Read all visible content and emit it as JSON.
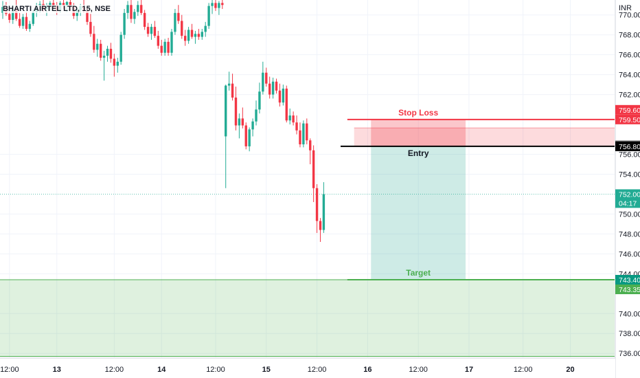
{
  "header": {
    "symbol": "BHARTI AIRTEL LTD, 15, NSE",
    "currency": "INR"
  },
  "colors": {
    "up": "#22ab94",
    "down": "#f23645",
    "stop_loss": "#f23645",
    "entry": "#000000",
    "target": "#4caf50",
    "grid": "#f0f3fa",
    "axis_line": "#d1d4dc",
    "current_price": "#22ab94",
    "crosshair_badge": "#707070"
  },
  "chart_data": {
    "type": "candlestick",
    "y_range": [
      735.6,
      771.5
    ],
    "y_ticks": [
      "770.00",
      "768.00",
      "766.00",
      "764.00",
      "762.00",
      "756.00",
      "754.00",
      "750.00",
      "748.00",
      "746.00",
      "744.00",
      "740.00",
      "738.00",
      "736.00"
    ],
    "x_ticks": [
      "12:00",
      "13",
      "12:00",
      "14",
      "12:00",
      "15",
      "12:00",
      "16",
      "12:00",
      "17",
      "12:00",
      "20"
    ],
    "candles": [
      {
        "o": 770.2,
        "h": 771.4,
        "l": 769.6,
        "c": 770.8
      },
      {
        "o": 770.8,
        "h": 771.3,
        "l": 769.9,
        "c": 770.1
      },
      {
        "o": 770.1,
        "h": 770.6,
        "l": 769.2,
        "c": 769.5
      },
      {
        "o": 769.5,
        "h": 771.0,
        "l": 769.1,
        "c": 770.6
      },
      {
        "o": 770.6,
        "h": 771.5,
        "l": 769.4,
        "c": 769.6
      },
      {
        "o": 769.6,
        "h": 770.2,
        "l": 768.7,
        "c": 768.9
      },
      {
        "o": 768.9,
        "h": 770.1,
        "l": 768.6,
        "c": 769.8
      },
      {
        "o": 769.8,
        "h": 770.3,
        "l": 768.4,
        "c": 768.6
      },
      {
        "o": 768.6,
        "h": 769.4,
        "l": 768.3,
        "c": 769.1
      },
      {
        "o": 769.1,
        "h": 770.6,
        "l": 768.9,
        "c": 770.3
      },
      {
        "o": 770.3,
        "h": 771.2,
        "l": 769.8,
        "c": 770.9
      },
      {
        "o": 770.9,
        "h": 771.4,
        "l": 770.2,
        "c": 771.1
      },
      {
        "o": 771.1,
        "h": 771.5,
        "l": 770.3,
        "c": 770.6
      },
      {
        "o": 770.6,
        "h": 771.2,
        "l": 769.9,
        "c": 770.9
      },
      {
        "o": 770.9,
        "h": 771.4,
        "l": 770.4,
        "c": 771.2
      },
      {
        "o": 771.2,
        "h": 771.5,
        "l": 770.6,
        "c": 770.9
      },
      {
        "o": 770.9,
        "h": 771.3,
        "l": 770.0,
        "c": 770.5
      },
      {
        "o": 770.5,
        "h": 771.4,
        "l": 770.2,
        "c": 771.2
      },
      {
        "o": 771.2,
        "h": 771.5,
        "l": 770.6,
        "c": 770.9
      },
      {
        "o": 770.9,
        "h": 771.4,
        "l": 770.3,
        "c": 771.3
      },
      {
        "o": 771.3,
        "h": 771.5,
        "l": 770.4,
        "c": 770.8
      },
      {
        "o": 770.8,
        "h": 771.2,
        "l": 769.6,
        "c": 769.9
      },
      {
        "o": 769.9,
        "h": 770.7,
        "l": 769.4,
        "c": 770.5
      },
      {
        "o": 770.5,
        "h": 771.1,
        "l": 769.9,
        "c": 770.9
      },
      {
        "o": 770.9,
        "h": 771.5,
        "l": 770.2,
        "c": 770.4
      },
      {
        "o": 770.4,
        "h": 770.9,
        "l": 769.0,
        "c": 769.3
      },
      {
        "o": 769.3,
        "h": 770.1,
        "l": 767.8,
        "c": 768.1
      },
      {
        "o": 768.1,
        "h": 768.9,
        "l": 766.2,
        "c": 766.5
      },
      {
        "o": 766.5,
        "h": 767.6,
        "l": 765.8,
        "c": 767.1
      },
      {
        "o": 767.1,
        "h": 767.5,
        "l": 765.4,
        "c": 765.7
      },
      {
        "o": 765.7,
        "h": 766.4,
        "l": 763.4,
        "c": 765.9
      },
      {
        "o": 765.9,
        "h": 766.9,
        "l": 765.3,
        "c": 766.6
      },
      {
        "o": 766.6,
        "h": 767.2,
        "l": 765.2,
        "c": 765.6
      },
      {
        "o": 765.6,
        "h": 766.1,
        "l": 763.8,
        "c": 764.9
      },
      {
        "o": 764.9,
        "h": 765.7,
        "l": 764.2,
        "c": 765.3
      },
      {
        "o": 765.3,
        "h": 768.3,
        "l": 765.0,
        "c": 768.0
      },
      {
        "o": 768.0,
        "h": 770.6,
        "l": 767.6,
        "c": 770.2
      },
      {
        "o": 770.2,
        "h": 771.4,
        "l": 769.6,
        "c": 771.0
      },
      {
        "o": 771.0,
        "h": 771.5,
        "l": 769.2,
        "c": 769.6
      },
      {
        "o": 769.6,
        "h": 770.6,
        "l": 769.1,
        "c": 770.3
      },
      {
        "o": 770.3,
        "h": 771.4,
        "l": 769.9,
        "c": 771.0
      },
      {
        "o": 771.0,
        "h": 771.5,
        "l": 770.0,
        "c": 770.2
      },
      {
        "o": 770.2,
        "h": 770.5,
        "l": 768.5,
        "c": 768.8
      },
      {
        "o": 768.8,
        "h": 769.2,
        "l": 767.8,
        "c": 768.1
      },
      {
        "o": 768.1,
        "h": 769.1,
        "l": 767.5,
        "c": 768.8
      },
      {
        "o": 768.8,
        "h": 769.4,
        "l": 767.7,
        "c": 767.9
      },
      {
        "o": 767.9,
        "h": 768.4,
        "l": 766.6,
        "c": 766.9
      },
      {
        "o": 766.9,
        "h": 767.5,
        "l": 765.9,
        "c": 766.2
      },
      {
        "o": 766.2,
        "h": 767.6,
        "l": 765.9,
        "c": 767.3
      },
      {
        "o": 767.3,
        "h": 767.7,
        "l": 765.9,
        "c": 766.2
      },
      {
        "o": 766.2,
        "h": 768.6,
        "l": 765.9,
        "c": 768.3
      },
      {
        "o": 768.3,
        "h": 770.6,
        "l": 768.0,
        "c": 770.2
      },
      {
        "o": 770.2,
        "h": 771.0,
        "l": 769.1,
        "c": 769.4
      },
      {
        "o": 769.4,
        "h": 770.0,
        "l": 767.6,
        "c": 767.9
      },
      {
        "o": 767.9,
        "h": 768.5,
        "l": 766.9,
        "c": 767.4
      },
      {
        "o": 767.4,
        "h": 768.8,
        "l": 767.1,
        "c": 768.5
      },
      {
        "o": 768.5,
        "h": 769.1,
        "l": 767.6,
        "c": 767.8
      },
      {
        "o": 767.8,
        "h": 768.4,
        "l": 767.1,
        "c": 768.1
      },
      {
        "o": 768.1,
        "h": 768.6,
        "l": 767.5,
        "c": 767.8
      },
      {
        "o": 767.8,
        "h": 768.6,
        "l": 767.5,
        "c": 768.3
      },
      {
        "o": 768.3,
        "h": 769.3,
        "l": 767.8,
        "c": 768.9
      },
      {
        "o": 768.9,
        "h": 771.2,
        "l": 768.6,
        "c": 770.9
      },
      {
        "o": 770.9,
        "h": 771.5,
        "l": 770.1,
        "c": 771.2
      },
      {
        "o": 771.2,
        "h": 771.5,
        "l": 770.4,
        "c": 770.7
      },
      {
        "o": 770.7,
        "h": 771.4,
        "l": 770.0,
        "c": 771.2
      },
      {
        "o": 771.2,
        "h": 771.5,
        "l": 770.6,
        "c": 771.0
      },
      {
        "o": 757.8,
        "h": 763.0,
        "l": 752.6,
        "c": 762.9
      },
      {
        "o": 762.9,
        "h": 764.3,
        "l": 762.4,
        "c": 763.1
      },
      {
        "o": 763.1,
        "h": 764.1,
        "l": 761.4,
        "c": 761.7
      },
      {
        "o": 761.7,
        "h": 762.8,
        "l": 758.4,
        "c": 758.9
      },
      {
        "o": 758.9,
        "h": 760.1,
        "l": 757.6,
        "c": 759.6
      },
      {
        "o": 759.6,
        "h": 760.7,
        "l": 758.6,
        "c": 758.9
      },
      {
        "o": 758.9,
        "h": 759.2,
        "l": 756.5,
        "c": 756.8
      },
      {
        "o": 756.8,
        "h": 758.7,
        "l": 756.3,
        "c": 758.5
      },
      {
        "o": 758.5,
        "h": 759.6,
        "l": 757.8,
        "c": 759.3
      },
      {
        "o": 759.3,
        "h": 761.4,
        "l": 758.9,
        "c": 760.5
      },
      {
        "o": 760.5,
        "h": 763.2,
        "l": 760.1,
        "c": 762.3
      },
      {
        "o": 762.3,
        "h": 765.3,
        "l": 762.0,
        "c": 764.2
      },
      {
        "o": 764.2,
        "h": 764.7,
        "l": 762.8,
        "c": 763.1
      },
      {
        "o": 763.1,
        "h": 763.8,
        "l": 761.6,
        "c": 762.0
      },
      {
        "o": 762.0,
        "h": 763.7,
        "l": 761.6,
        "c": 763.3
      },
      {
        "o": 763.3,
        "h": 763.6,
        "l": 762.1,
        "c": 762.4
      },
      {
        "o": 762.4,
        "h": 763.1,
        "l": 760.8,
        "c": 761.2
      },
      {
        "o": 761.2,
        "h": 763.0,
        "l": 760.9,
        "c": 762.6
      },
      {
        "o": 762.6,
        "h": 762.9,
        "l": 759.2,
        "c": 759.4
      },
      {
        "o": 759.4,
        "h": 760.6,
        "l": 759.0,
        "c": 759.9
      },
      {
        "o": 759.9,
        "h": 760.3,
        "l": 758.9,
        "c": 759.2
      },
      {
        "o": 759.2,
        "h": 759.9,
        "l": 758.0,
        "c": 758.4
      },
      {
        "o": 758.4,
        "h": 759.2,
        "l": 756.7,
        "c": 757.0
      },
      {
        "o": 757.0,
        "h": 759.4,
        "l": 756.7,
        "c": 759.1
      },
      {
        "o": 759.1,
        "h": 759.6,
        "l": 757.0,
        "c": 757.4
      },
      {
        "o": 757.4,
        "h": 757.6,
        "l": 755.0,
        "c": 756.4
      },
      {
        "o": 756.4,
        "h": 756.9,
        "l": 751.2,
        "c": 752.6
      },
      {
        "o": 752.6,
        "h": 753.0,
        "l": 748.1,
        "c": 749.3
      },
      {
        "o": 749.3,
        "h": 749.6,
        "l": 747.2,
        "c": 748.4
      },
      {
        "o": 748.4,
        "h": 753.2,
        "l": 748.1,
        "c": 752.0
      }
    ],
    "x_tick_candle_index": [
      2,
      16,
      33,
      47,
      63,
      78,
      93,
      108,
      123,
      138,
      154,
      168
    ],
    "price_lines": {
      "stop_loss": 759.5,
      "upper_zone_edge": 758.65,
      "entry": 756.8,
      "target": 743.4,
      "current": 752.0
    },
    "position": {
      "risk_label": "Stop Loss",
      "entry_label": "Entry",
      "reward_label": "Target",
      "start_candle": 109,
      "end_candle": 137
    },
    "lower_zone": {
      "top": 743.4,
      "bottom": 735.7
    },
    "upper_zone": {
      "top": 759.5,
      "bottom": 756.8,
      "start_candle": 104
    },
    "price_badges": [
      {
        "key": "stop_loss_top",
        "price": 759.6,
        "label": "759.60",
        "color": "#f23645"
      },
      {
        "key": "stop_loss",
        "price": 759.5,
        "label": "759.50",
        "color": "#f23645"
      },
      {
        "key": "crosshair",
        "price": 756.9,
        "label": "756.90",
        "color": "#707070"
      },
      {
        "key": "entry",
        "price": 756.8,
        "label": "756.80",
        "color": "#000000"
      },
      {
        "key": "target",
        "price": 743.4,
        "label": "743.40",
        "color": "#089981"
      },
      {
        "key": "target_zone",
        "price": 743.35,
        "label": "743.35",
        "color": "#4caf50"
      }
    ],
    "current_badge": {
      "price": 752.0,
      "label": "752.00",
      "countdown": "04:17"
    }
  }
}
